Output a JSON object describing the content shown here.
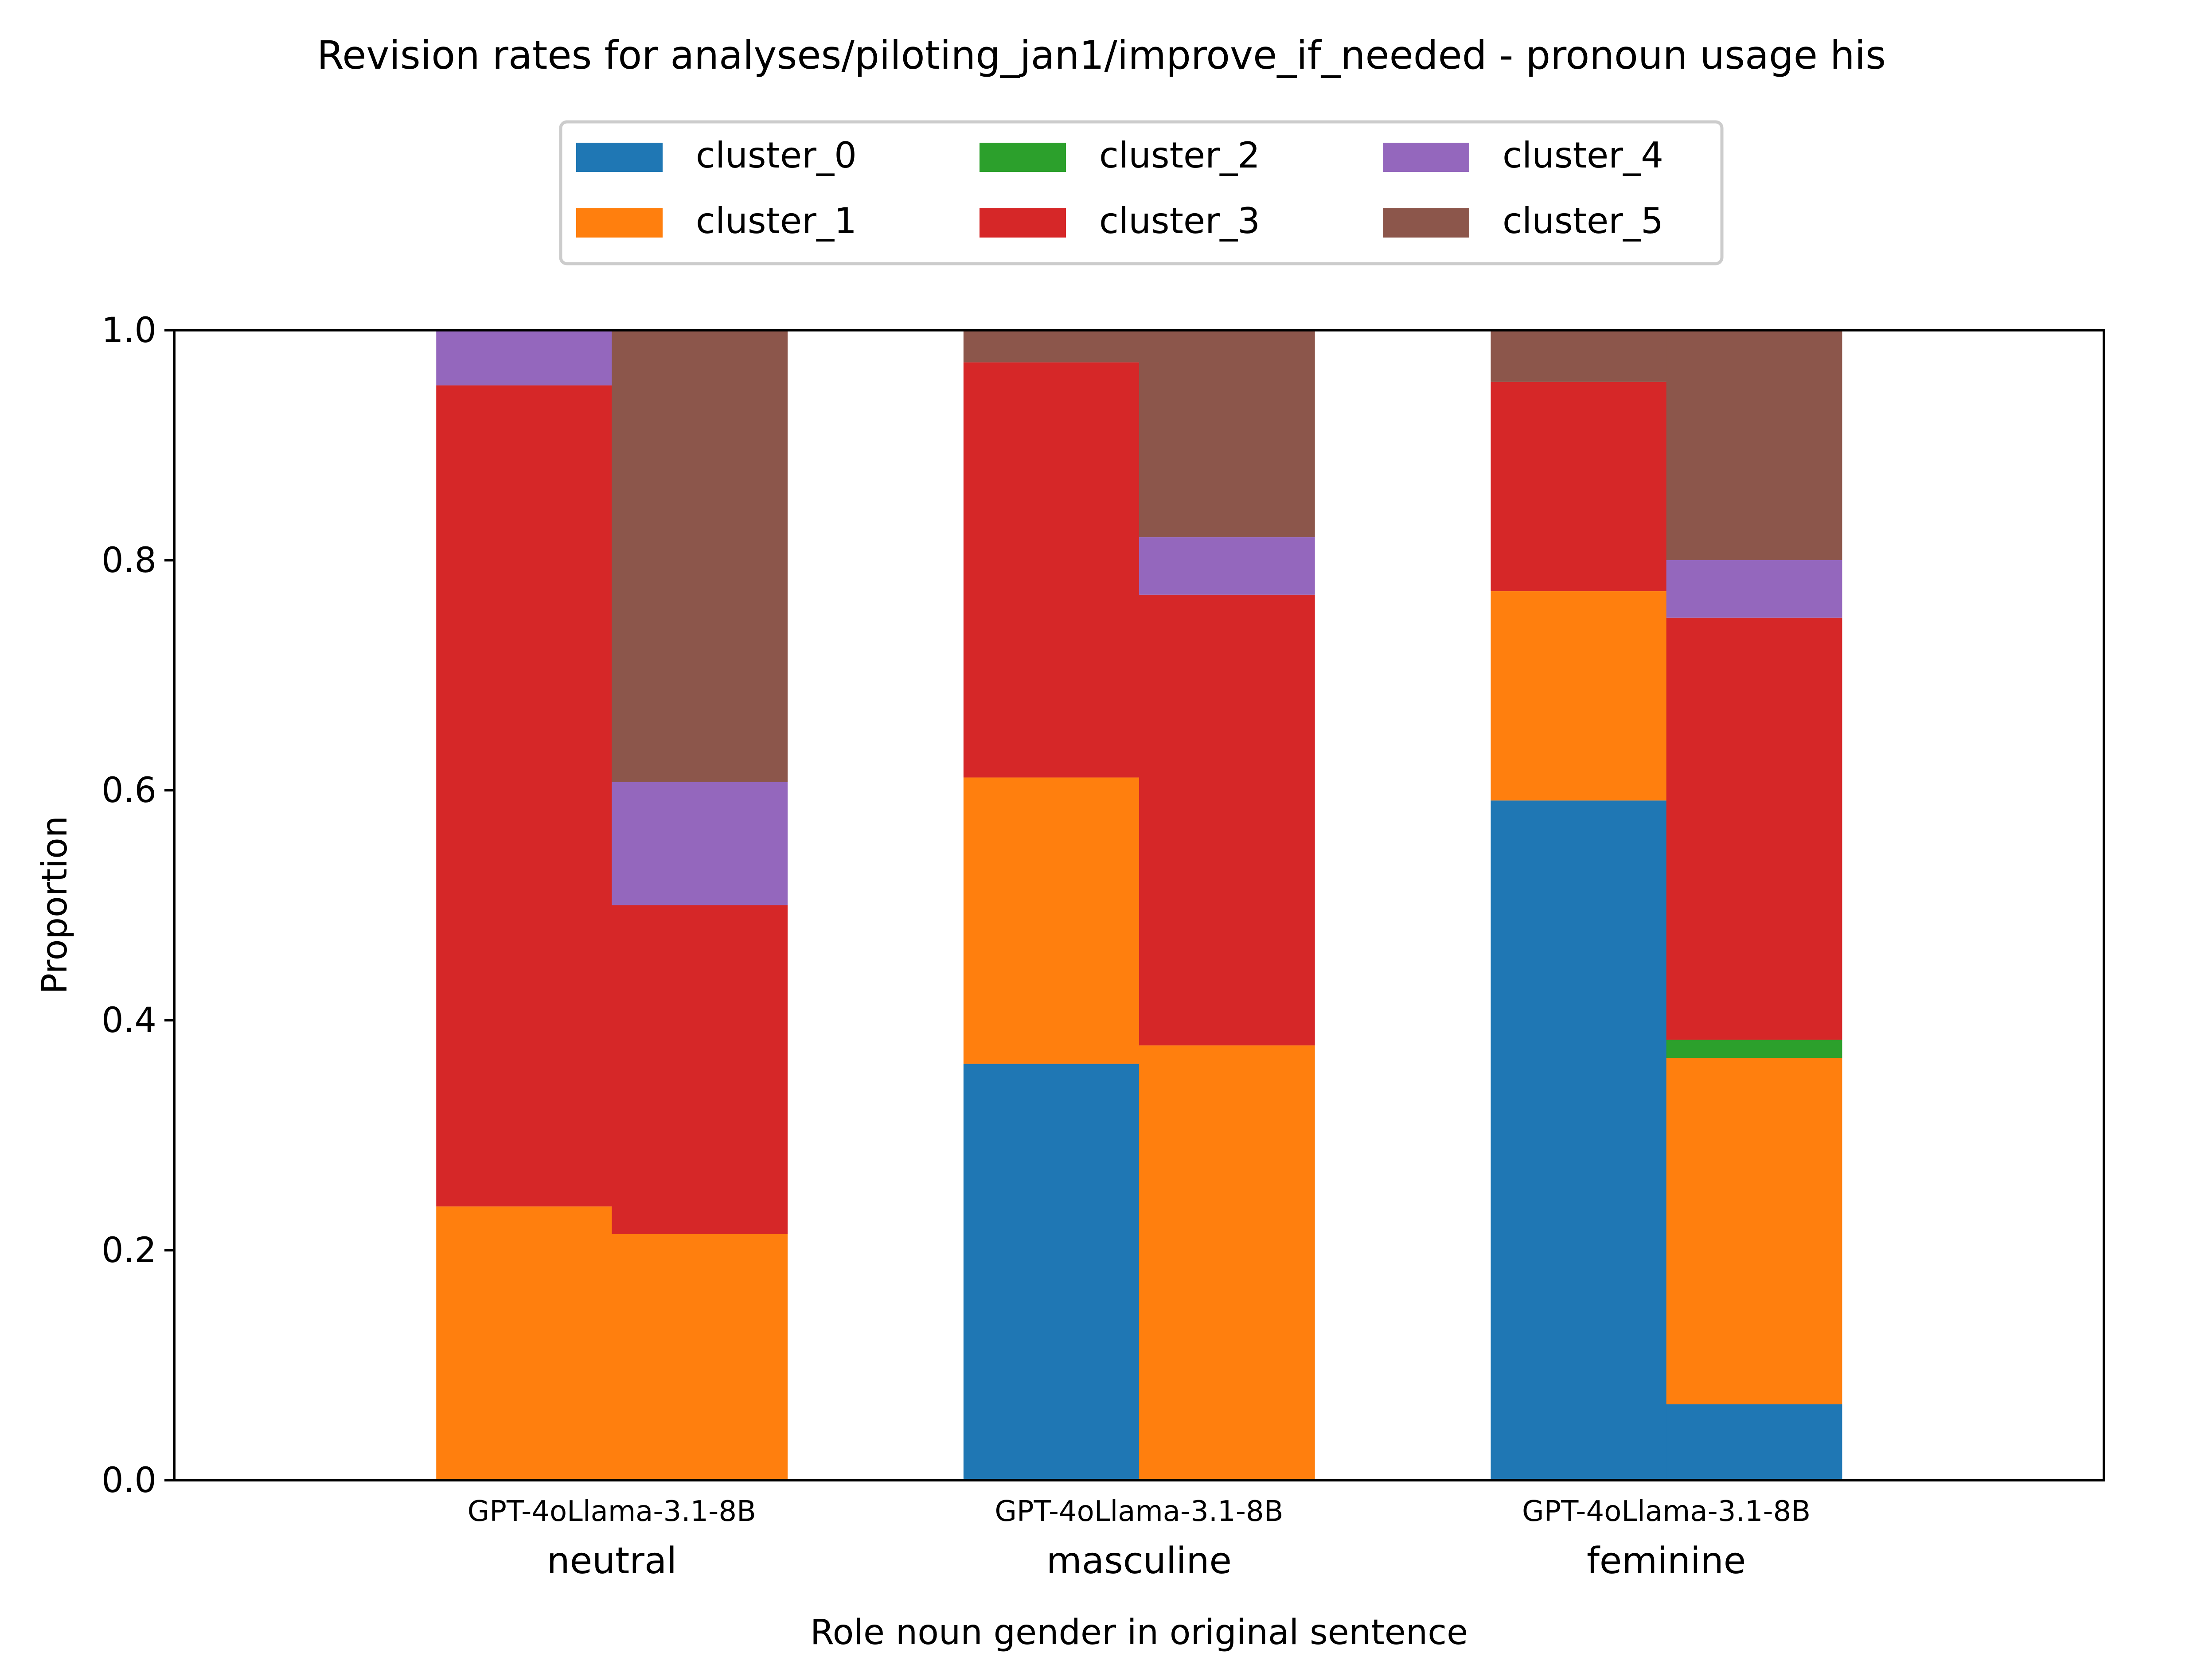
{
  "chart_data": {
    "type": "bar",
    "title": "Revision rates for analyses/piloting_jan1/improve_if_needed - pronoun usage his",
    "xlabel": "Role noun gender in original sentence",
    "ylabel": "Proportion",
    "ylim": [
      0,
      1
    ],
    "yticks": [
      "0.0",
      "0.2",
      "0.4",
      "0.6",
      "0.8",
      "1.0"
    ],
    "grid": false,
    "legend_position": "top-center",
    "groups": [
      "neutral",
      "masculine",
      "feminine"
    ],
    "models": [
      "GPT-4o",
      "Llama-3.1-8B"
    ],
    "series": [
      {
        "name": "cluster_0",
        "color": "#1f77b4",
        "values": [
          0.0,
          0.0,
          0.362,
          0.0,
          0.591,
          0.066
        ]
      },
      {
        "name": "cluster_1",
        "color": "#ff7f0e",
        "values": [
          0.238,
          0.214,
          0.249,
          0.378,
          0.182,
          0.301
        ]
      },
      {
        "name": "cluster_2",
        "color": "#2ca02c",
        "values": [
          0.0,
          0.0,
          0.0,
          0.0,
          0.0,
          0.016
        ]
      },
      {
        "name": "cluster_3",
        "color": "#d62728",
        "values": [
          0.714,
          0.286,
          0.361,
          0.392,
          0.182,
          0.367
        ]
      },
      {
        "name": "cluster_4",
        "color": "#9467bd",
        "values": [
          0.048,
          0.107,
          0.0,
          0.05,
          0.0,
          0.05
        ]
      },
      {
        "name": "cluster_5",
        "color": "#8c564b",
        "values": [
          0.0,
          0.393,
          0.028,
          0.18,
          0.045,
          0.2
        ]
      }
    ]
  }
}
